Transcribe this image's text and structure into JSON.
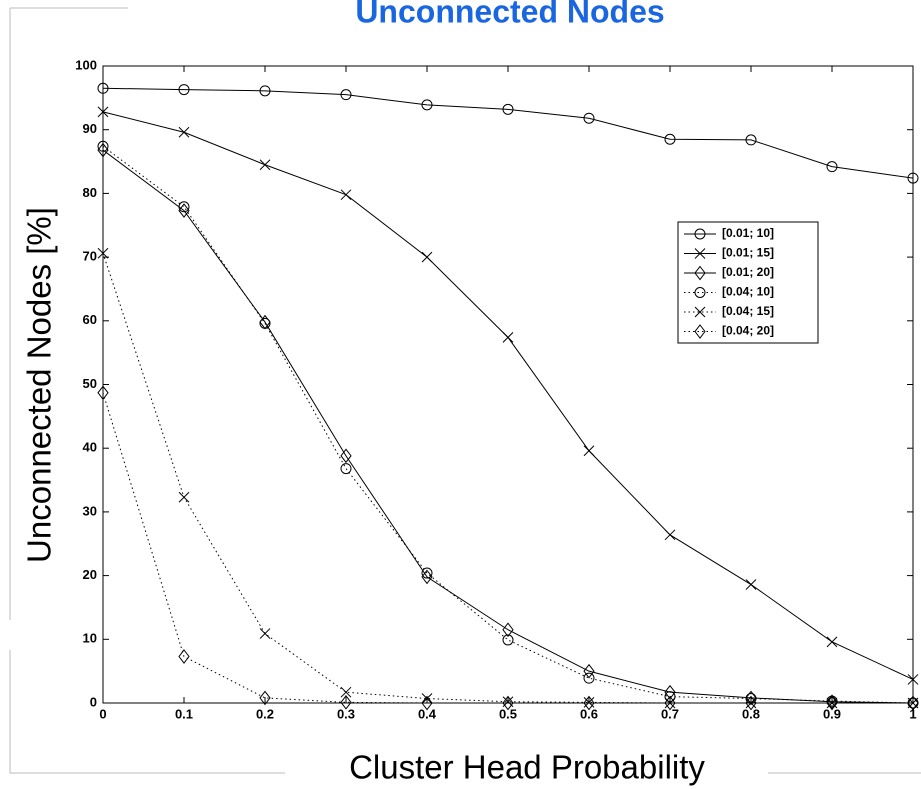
{
  "chart_data": {
    "type": "line",
    "title": "Unconnected Nodes",
    "xlabel": "Cluster Head Probability",
    "ylabel": "Unconnected Nodes [%]",
    "x": [
      0,
      0.1,
      0.2,
      0.3,
      0.4,
      0.5,
      0.6,
      0.7,
      0.8,
      0.9,
      1
    ],
    "xlim": [
      0,
      1
    ],
    "xticks": [
      0,
      0.1,
      0.2,
      0.3,
      0.4,
      0.5,
      0.6,
      0.7,
      0.8,
      0.9,
      1
    ],
    "ylim": [
      0,
      100
    ],
    "yticks": [
      0,
      10,
      20,
      30,
      40,
      50,
      60,
      70,
      80,
      90,
      100
    ],
    "legend": "upper right",
    "series": [
      {
        "name": "[0.01; 10]",
        "color": "#000000",
        "marker": "circle",
        "linestyle": "solid",
        "values": [
          96.5,
          96.3,
          96.1,
          95.5,
          93.9,
          93.2,
          91.8,
          88.5,
          88.4,
          84.2,
          82.4
        ]
      },
      {
        "name": "[0.01; 15]",
        "color": "#000000",
        "marker": "x",
        "linestyle": "solid",
        "values": [
          92.8,
          89.6,
          84.5,
          79.8,
          70,
          57.4,
          39.6,
          26.4,
          18.6,
          9.6,
          3.7
        ]
      },
      {
        "name": "[0.01; 20]",
        "color": "#000000",
        "marker": "diamond",
        "linestyle": "solid",
        "values": [
          86.8,
          77.3,
          59.8,
          38.8,
          19.8,
          11.5,
          5.0,
          1.7,
          0.8,
          0.2,
          0
        ]
      },
      {
        "name": "[0.04; 10]",
        "color": "#000000",
        "marker": "circle",
        "linestyle": "dotted",
        "values": [
          87.4,
          77.9,
          59.6,
          36.8,
          20.4,
          9.9,
          3.9,
          1.0,
          0.7,
          0.3,
          0
        ]
      },
      {
        "name": "[0.04; 15]",
        "color": "#000000",
        "marker": "x",
        "linestyle": "dotted",
        "values": [
          70.6,
          32.3,
          10.9,
          1.7,
          0.7,
          0.2,
          0.1,
          0,
          0,
          0,
          0
        ]
      },
      {
        "name": "[0.04; 20]",
        "color": "#000000",
        "marker": "diamond",
        "linestyle": "dotted",
        "values": [
          48.7,
          7.3,
          0.8,
          0.1,
          0,
          0,
          0,
          0,
          0,
          0,
          0
        ]
      }
    ]
  }
}
